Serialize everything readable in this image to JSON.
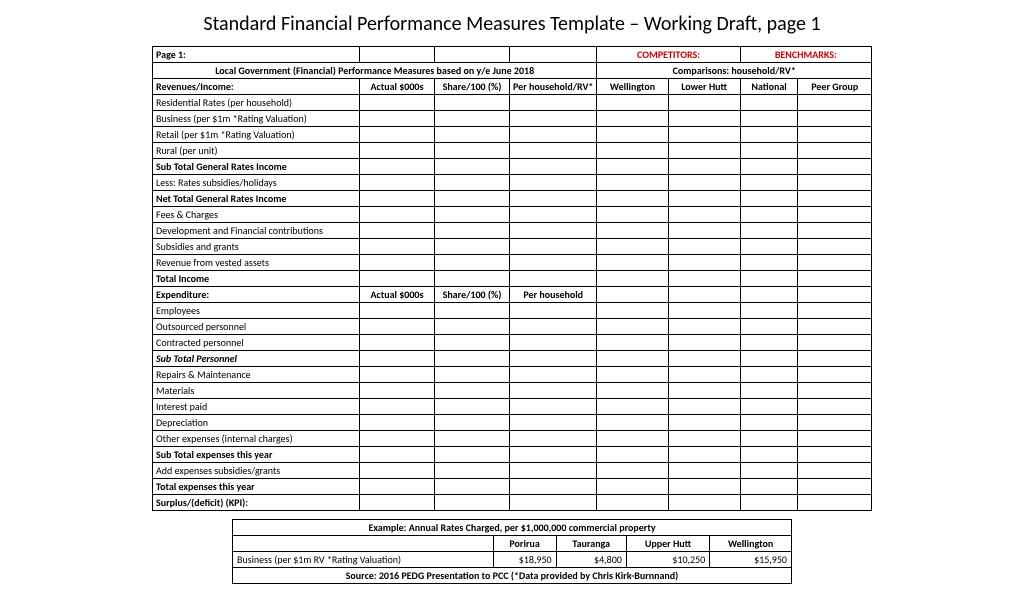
{
  "title": "Standard Financial Performance Measures Template  – Working Draft, page 1",
  "header": {
    "page": "Page 1:",
    "competitors": "COMPETITORS:",
    "benchmarks": "BENCHMARKS:",
    "subhead_left": "Local Government (Financial) Performance Measures based on y/e June 2018",
    "subhead_right": "Comparisons: household/RV*",
    "rev_header": "Revenues/Income:",
    "col_actual": "Actual $000s",
    "col_share": "Share/100 (%)",
    "col_perhh_rv": "Per household/RV*",
    "col_wellington": "Wellington",
    "col_lowerhutt": "Lower Hutt",
    "col_national": "National",
    "col_peergroup": "Peer Group"
  },
  "rows": {
    "r1": "Residential Rates (per household)",
    "r2": "Business (per $1m *Rating Valuation)",
    "r3": "Retail (per $1m *Rating Valuation)",
    "r4": "Rural (per unit)",
    "r5": "Sub Total General Rates Income",
    "r6": "Less: Rates subsidies/holidays",
    "r7": "Net Total General Rates Income",
    "r8": "Fees & Charges",
    "r9": "Development and Financial contributions",
    "r10": "Subsidies and grants",
    "r11": "Revenue from vested assets",
    "r12": "Total Income",
    "exp_header": "Expenditure:",
    "exp_actual": "Actual $000s",
    "exp_share": "Share/100 (%)",
    "exp_perhh": "Per household",
    "e1": "Employees",
    "e2": "Outsourced personnel",
    "e3": "Contracted personnel",
    "e4": "Sub Total Personnel",
    "e5": "Repairs & Maintenance",
    "e6": "Materials",
    "e7": "Interest paid",
    "e8": "Depreciation",
    "e9": "Other expenses (internal charges)",
    "e10": "Sub Total expenses this year",
    "e11": "Add expenses subsidies/grants",
    "e12": "Total expenses this year",
    "e13": "Surplus/(deficit) (KPI):"
  },
  "example": {
    "title": "Example: Annual Rates Charged, per $1,000,000 commercial property",
    "col1": "Porirua",
    "col2": "Tauranga",
    "col3": "Upper Hutt",
    "col4": "Wellington",
    "row_label": "Business (per $1m RV *Rating Valuation)",
    "v1": "$18,950",
    "v2": "$4,800",
    "v3": "$10,250",
    "v4": "$15,950",
    "source": "Source: 2016 PEDG Presentation to PCC (*Data provided by Chris Kirk-Burnnand)"
  },
  "colors": {
    "red": "#c00000"
  }
}
